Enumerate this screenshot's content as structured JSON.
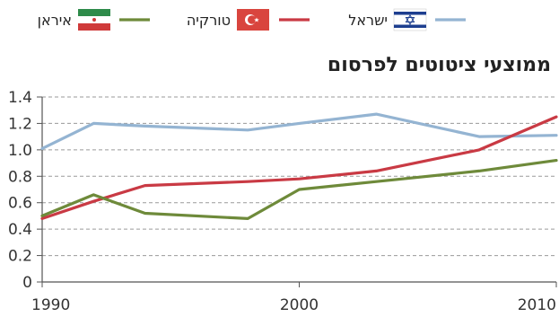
{
  "chart_data": {
    "type": "line",
    "title": "ממוצעי ציטוטים לפרסום",
    "xlabel": "",
    "ylabel": "",
    "x": [
      1990,
      1992,
      1994,
      1998,
      2000,
      2003,
      2007,
      2010
    ],
    "xticks": [
      1990,
      2000,
      2010
    ],
    "xtick_labels": [
      "1990",
      "2000",
      "2010"
    ],
    "xlim": [
      1990,
      2010
    ],
    "ylim": [
      0,
      1.4
    ],
    "yticks": [
      0,
      0.2,
      0.4,
      0.6,
      0.8,
      1.0,
      1.2,
      1.4
    ],
    "ytick_labels": [
      "0",
      "0.2",
      "0.4",
      "0.6",
      "0.8",
      "1.0",
      "1.2",
      "1.4"
    ],
    "grid": "horizontal dashed",
    "legend_position": "top",
    "series": [
      {
        "name": "ישראל",
        "color": "#94b4d2",
        "flag": "israel-flag-icon",
        "values": [
          1.01,
          1.2,
          1.18,
          1.15,
          1.2,
          1.27,
          1.1,
          1.11
        ]
      },
      {
        "name": "טורקיה",
        "color": "#c93a44",
        "flag": "turkey-flag-icon",
        "values": [
          0.48,
          0.61,
          0.73,
          0.76,
          0.78,
          0.84,
          1.0,
          1.25
        ]
      },
      {
        "name": "איראן",
        "color": "#6e8a3a",
        "flag": "iran-flag-icon",
        "values": [
          0.5,
          0.66,
          0.52,
          0.48,
          0.7,
          0.76,
          0.84,
          0.92
        ]
      }
    ]
  }
}
